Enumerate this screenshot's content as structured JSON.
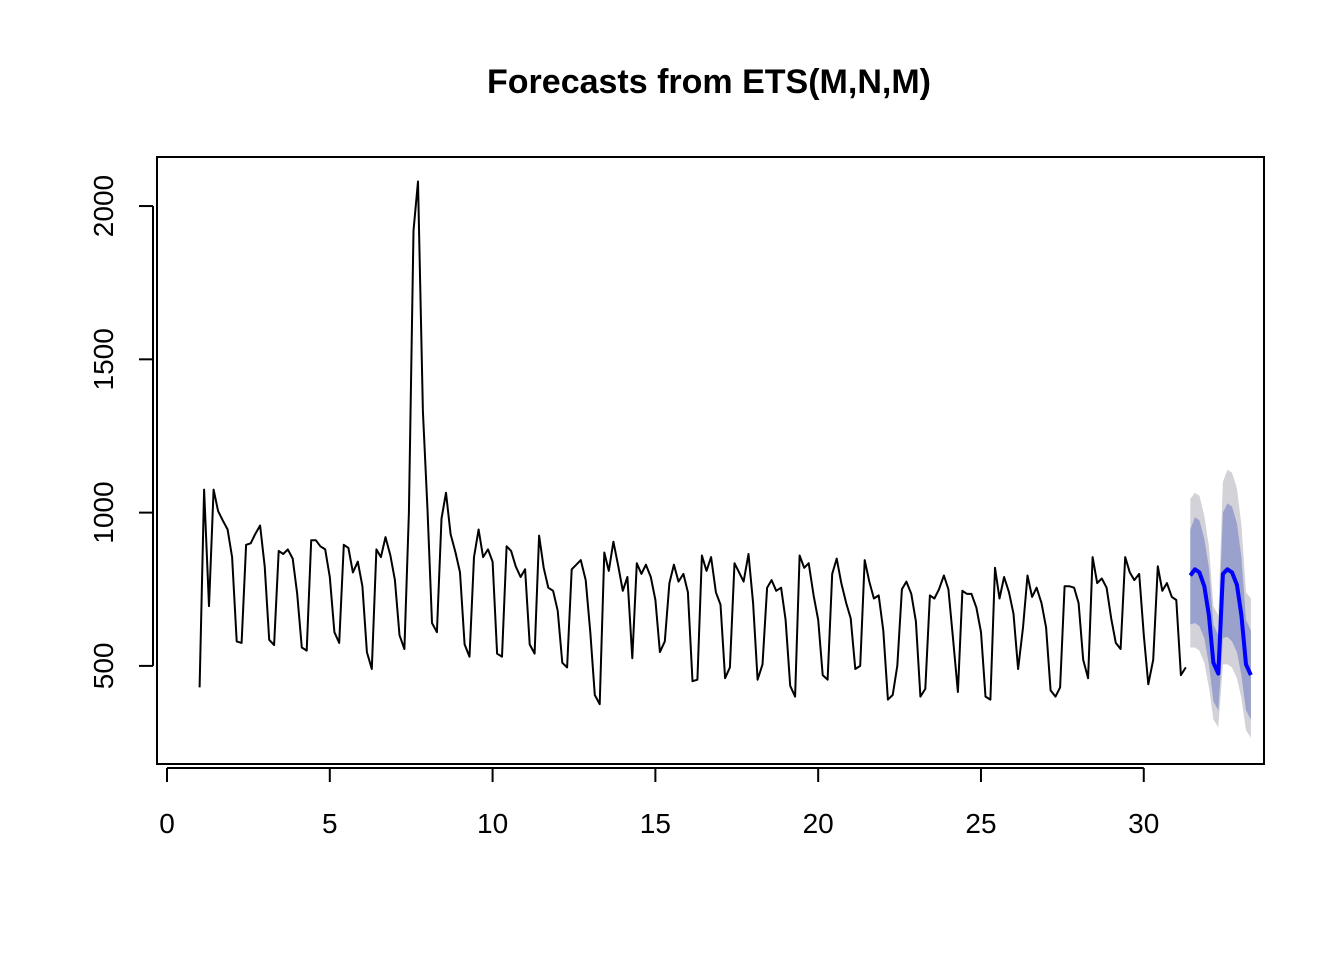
{
  "chart_data": {
    "type": "line",
    "title": "Forecasts from ETS(M,N,M)",
    "xlabel": "",
    "ylabel": "",
    "xlim": [
      0,
      34
    ],
    "ylim": [
      180,
      2160
    ],
    "x_ticks": [
      0,
      5,
      10,
      15,
      20,
      25,
      30
    ],
    "x_tick_labels": [
      "0",
      "5",
      "10",
      "15",
      "20",
      "25",
      "30"
    ],
    "y_ticks": [
      500,
      1000,
      1500,
      2000
    ],
    "y_tick_labels": [
      "500",
      "1000",
      "1500",
      "2000"
    ],
    "grid": false,
    "colors": {
      "history": "#000000",
      "forecast": "#0000ff",
      "band_95": "#d2d2d8",
      "band_80": "#9aa1cc"
    },
    "series": [
      {
        "values": [
          [
            1.0,
            430
          ],
          [
            1.14,
            1075
          ],
          [
            1.29,
            695
          ],
          [
            1.43,
            1075
          ],
          [
            1.57,
            1005
          ],
          [
            1.71,
            975
          ],
          [
            1.86,
            945
          ],
          [
            2.0,
            855
          ],
          [
            2.14,
            580
          ],
          [
            2.29,
            575
          ],
          [
            2.43,
            895
          ],
          [
            2.57,
            900
          ],
          [
            2.71,
            930
          ],
          [
            2.86,
            958
          ],
          [
            3.0,
            825
          ],
          [
            3.14,
            585
          ],
          [
            3.29,
            568
          ],
          [
            3.43,
            875
          ],
          [
            3.57,
            865
          ],
          [
            3.71,
            880
          ],
          [
            3.86,
            850
          ],
          [
            4.0,
            735
          ],
          [
            4.14,
            560
          ],
          [
            4.29,
            550
          ],
          [
            4.43,
            910
          ],
          [
            4.57,
            910
          ],
          [
            4.71,
            890
          ],
          [
            4.86,
            880
          ],
          [
            5.0,
            790
          ],
          [
            5.14,
            610
          ],
          [
            5.29,
            575
          ],
          [
            5.43,
            895
          ],
          [
            5.57,
            885
          ],
          [
            5.71,
            805
          ],
          [
            5.86,
            840
          ],
          [
            6.0,
            760
          ],
          [
            6.14,
            545
          ],
          [
            6.29,
            490
          ],
          [
            6.43,
            880
          ],
          [
            6.57,
            855
          ],
          [
            6.71,
            920
          ],
          [
            6.86,
            860
          ],
          [
            7.0,
            780
          ],
          [
            7.14,
            600
          ],
          [
            7.29,
            555
          ],
          [
            7.43,
            1000
          ],
          [
            7.57,
            1920
          ],
          [
            7.71,
            2080
          ],
          [
            7.86,
            1330
          ],
          [
            8.0,
            1010
          ],
          [
            8.14,
            640
          ],
          [
            8.29,
            610
          ],
          [
            8.43,
            980
          ],
          [
            8.57,
            1065
          ],
          [
            8.71,
            930
          ],
          [
            8.86,
            870
          ],
          [
            9.0,
            805
          ],
          [
            9.14,
            570
          ],
          [
            9.29,
            530
          ],
          [
            9.43,
            855
          ],
          [
            9.57,
            945
          ],
          [
            9.71,
            855
          ],
          [
            9.86,
            880
          ],
          [
            10.0,
            840
          ],
          [
            10.14,
            540
          ],
          [
            10.29,
            530
          ],
          [
            10.43,
            890
          ],
          [
            10.57,
            875
          ],
          [
            10.71,
            825
          ],
          [
            10.86,
            790
          ],
          [
            11.0,
            815
          ],
          [
            11.14,
            570
          ],
          [
            11.29,
            540
          ],
          [
            11.43,
            925
          ],
          [
            11.57,
            820
          ],
          [
            11.71,
            755
          ],
          [
            11.86,
            745
          ],
          [
            12.0,
            680
          ],
          [
            12.14,
            510
          ],
          [
            12.29,
            495
          ],
          [
            12.43,
            815
          ],
          [
            12.57,
            830
          ],
          [
            12.71,
            845
          ],
          [
            12.86,
            780
          ],
          [
            13.0,
            610
          ],
          [
            13.14,
            405
          ],
          [
            13.29,
            375
          ],
          [
            13.43,
            870
          ],
          [
            13.57,
            810
          ],
          [
            13.71,
            905
          ],
          [
            13.86,
            825
          ],
          [
            14.0,
            745
          ],
          [
            14.14,
            790
          ],
          [
            14.29,
            525
          ],
          [
            14.43,
            835
          ],
          [
            14.57,
            800
          ],
          [
            14.71,
            830
          ],
          [
            14.86,
            790
          ],
          [
            15.0,
            715
          ],
          [
            15.14,
            545
          ],
          [
            15.29,
            580
          ],
          [
            15.43,
            770
          ],
          [
            15.57,
            830
          ],
          [
            15.71,
            775
          ],
          [
            15.86,
            800
          ],
          [
            16.0,
            740
          ],
          [
            16.14,
            450
          ],
          [
            16.29,
            455
          ],
          [
            16.43,
            860
          ],
          [
            16.57,
            810
          ],
          [
            16.71,
            855
          ],
          [
            16.86,
            740
          ],
          [
            17.0,
            700
          ],
          [
            17.14,
            460
          ],
          [
            17.29,
            495
          ],
          [
            17.43,
            835
          ],
          [
            17.57,
            805
          ],
          [
            17.71,
            775
          ],
          [
            17.86,
            865
          ],
          [
            18.0,
            705
          ],
          [
            18.14,
            455
          ],
          [
            18.29,
            505
          ],
          [
            18.43,
            755
          ],
          [
            18.57,
            780
          ],
          [
            18.71,
            745
          ],
          [
            18.86,
            755
          ],
          [
            19.0,
            650
          ],
          [
            19.14,
            435
          ],
          [
            19.29,
            400
          ],
          [
            19.43,
            860
          ],
          [
            19.57,
            820
          ],
          [
            19.71,
            835
          ],
          [
            19.86,
            730
          ],
          [
            20.0,
            650
          ],
          [
            20.14,
            470
          ],
          [
            20.29,
            455
          ],
          [
            20.43,
            800
          ],
          [
            20.57,
            850
          ],
          [
            20.71,
            770
          ],
          [
            20.86,
            705
          ],
          [
            21.0,
            655
          ],
          [
            21.14,
            490
          ],
          [
            21.29,
            500
          ],
          [
            21.43,
            845
          ],
          [
            21.57,
            775
          ],
          [
            21.71,
            720
          ],
          [
            21.86,
            730
          ],
          [
            22.0,
            615
          ],
          [
            22.14,
            390
          ],
          [
            22.29,
            405
          ],
          [
            22.43,
            500
          ],
          [
            22.57,
            750
          ],
          [
            22.71,
            775
          ],
          [
            22.86,
            735
          ],
          [
            23.0,
            645
          ],
          [
            23.14,
            400
          ],
          [
            23.29,
            425
          ],
          [
            23.43,
            730
          ],
          [
            23.57,
            720
          ],
          [
            23.71,
            750
          ],
          [
            23.86,
            795
          ],
          [
            24.0,
            750
          ],
          [
            24.14,
            590
          ],
          [
            24.29,
            415
          ],
          [
            24.43,
            745
          ],
          [
            24.57,
            735
          ],
          [
            24.71,
            735
          ],
          [
            24.86,
            690
          ],
          [
            25.0,
            610
          ],
          [
            25.14,
            400
          ],
          [
            25.29,
            390
          ],
          [
            25.43,
            820
          ],
          [
            25.57,
            720
          ],
          [
            25.71,
            790
          ],
          [
            25.86,
            740
          ],
          [
            26.0,
            670
          ],
          [
            26.14,
            490
          ],
          [
            26.29,
            625
          ],
          [
            26.43,
            795
          ],
          [
            26.57,
            725
          ],
          [
            26.71,
            755
          ],
          [
            26.86,
            705
          ],
          [
            27.0,
            625
          ],
          [
            27.14,
            420
          ],
          [
            27.29,
            400
          ],
          [
            27.43,
            430
          ],
          [
            27.57,
            760
          ],
          [
            27.71,
            760
          ],
          [
            27.86,
            755
          ],
          [
            28.0,
            705
          ],
          [
            28.14,
            520
          ],
          [
            28.29,
            460
          ],
          [
            28.43,
            855
          ],
          [
            28.57,
            770
          ],
          [
            28.71,
            785
          ],
          [
            28.86,
            755
          ],
          [
            29.0,
            655
          ],
          [
            29.14,
            575
          ],
          [
            29.29,
            555
          ],
          [
            29.43,
            855
          ],
          [
            29.57,
            805
          ],
          [
            29.71,
            780
          ],
          [
            29.86,
            800
          ],
          [
            30.0,
            600
          ],
          [
            30.14,
            440
          ],
          [
            30.29,
            520
          ],
          [
            30.43,
            825
          ],
          [
            30.57,
            745
          ],
          [
            30.71,
            770
          ],
          [
            30.86,
            725
          ],
          [
            31.0,
            715
          ],
          [
            31.14,
            470
          ],
          [
            31.29,
            495
          ]
        ]
      },
      {
        "values": [
          [
            31.43,
            795
          ],
          [
            31.57,
            815
          ],
          [
            31.71,
            805
          ],
          [
            31.86,
            760
          ],
          [
            32.0,
            665
          ],
          [
            32.14,
            510
          ],
          [
            32.29,
            475
          ],
          [
            32.43,
            800
          ],
          [
            32.57,
            815
          ],
          [
            32.71,
            805
          ],
          [
            32.86,
            765
          ],
          [
            33.0,
            665
          ],
          [
            33.14,
            505
          ],
          [
            33.29,
            470
          ]
        ],
        "lo80": [
          635,
          640,
          630,
          590,
          505,
          385,
          355,
          590,
          595,
          580,
          545,
          470,
          355,
          325
        ],
        "hi80": [
          945,
          985,
          975,
          915,
          820,
          635,
          600,
          1000,
          1030,
          1020,
          965,
          855,
          650,
          615
        ],
        "lo95": [
          560,
          560,
          550,
          510,
          430,
          325,
          300,
          505,
          505,
          495,
          460,
          395,
          290,
          265
        ],
        "hi95": [
          1045,
          1065,
          1055,
          990,
          890,
          695,
          665,
          1100,
          1140,
          1130,
          1080,
          960,
          740,
          720
        ]
      }
    ]
  }
}
